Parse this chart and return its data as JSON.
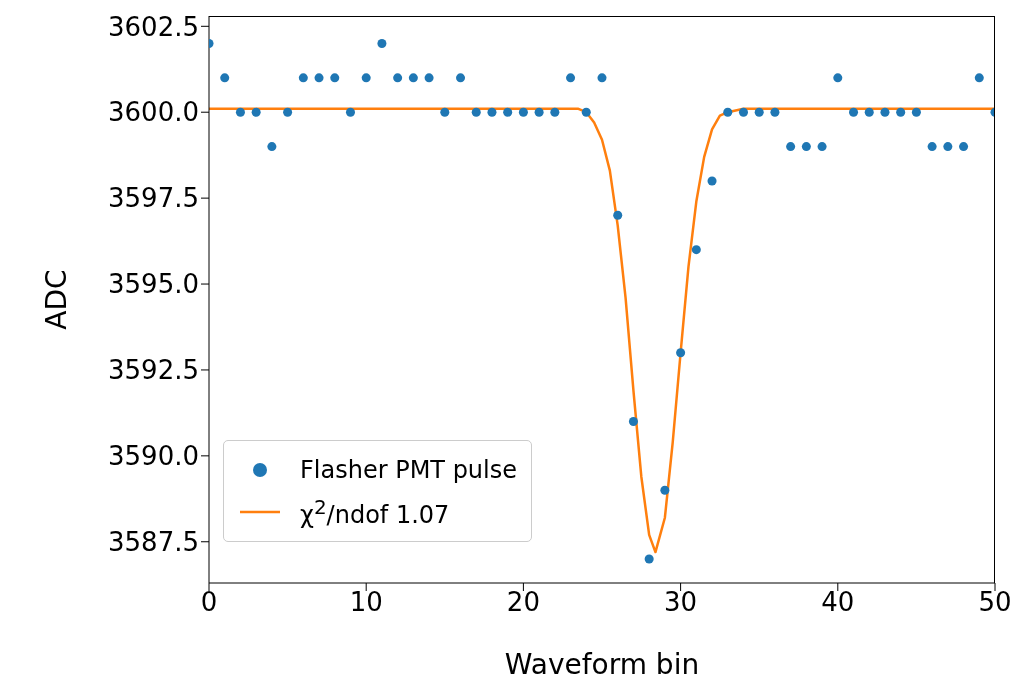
{
  "chart_data": {
    "type": "scatter",
    "xlabel": "Waveform bin",
    "ylabel": "ADC",
    "xlim": [
      0,
      50
    ],
    "xticks": [
      0,
      10,
      20,
      30,
      40,
      50
    ],
    "ylim": [
      3586.3,
      3602.8
    ],
    "yticks": [
      {
        "value": 3587.5,
        "label": "3587.5"
      },
      {
        "value": 3590,
        "label": "3590.0"
      },
      {
        "value": 3592.5,
        "label": "3592.5"
      },
      {
        "value": 3595,
        "label": "3595.0"
      },
      {
        "value": 3597.5,
        "label": "3597.5"
      },
      {
        "value": 3600,
        "label": "3600.0"
      },
      {
        "value": 3602.5,
        "label": "3602.5"
      }
    ],
    "grid": false,
    "legend": "bottom left",
    "series": [
      {
        "name": "Flasher PMT pulse",
        "marker": "circle",
        "color": "#1f77b4",
        "x": [
          0,
          1,
          2,
          3,
          4,
          5,
          6,
          7,
          8,
          9,
          10,
          11,
          12,
          13,
          14,
          15,
          16,
          17,
          18,
          19,
          20,
          21,
          22,
          23,
          24,
          25,
          26,
          27,
          28,
          29,
          30,
          31,
          32,
          33,
          34,
          35,
          36,
          37,
          38,
          39,
          40,
          41,
          42,
          43,
          44,
          45,
          46,
          47,
          48,
          49,
          50
        ],
        "values": [
          3602,
          3601,
          3600,
          3600,
          3599,
          3600,
          3601,
          3601,
          3601,
          3600,
          3601,
          3602,
          3601,
          3601,
          3601,
          3600,
          3601,
          3600,
          3600,
          3600,
          3600,
          3600,
          3600,
          3601,
          3600,
          3601,
          3597,
          3591,
          3587,
          3589,
          3593,
          3596,
          3598,
          3600,
          3600,
          3600,
          3600,
          3599,
          3599,
          3599,
          3601,
          3600,
          3600,
          3600,
          3600,
          3600,
          3599,
          3599,
          3599,
          3601,
          3600
        ]
      },
      {
        "name": "χ$^{2}$/ndof 1.07",
        "type": "line",
        "marker": "none",
        "line_style": "solid",
        "color": "#ff7f0e",
        "x": [
          0,
          22,
          23,
          23.5,
          24,
          24.5,
          25,
          25.5,
          26,
          26.5,
          27,
          27.5,
          28,
          28.4,
          29,
          29.5,
          30,
          30.5,
          31,
          31.5,
          32,
          32.5,
          33,
          34,
          50
        ],
        "values": [
          3600.1,
          3600.1,
          3600.1,
          3600.1,
          3600.0,
          3599.7,
          3599.2,
          3598.3,
          3596.7,
          3594.6,
          3591.9,
          3589.4,
          3587.7,
          3587.2,
          3588.2,
          3590.4,
          3593.0,
          3595.5,
          3597.4,
          3598.7,
          3599.5,
          3599.9,
          3600.0,
          3600.1,
          3600.1
        ]
      }
    ]
  }
}
